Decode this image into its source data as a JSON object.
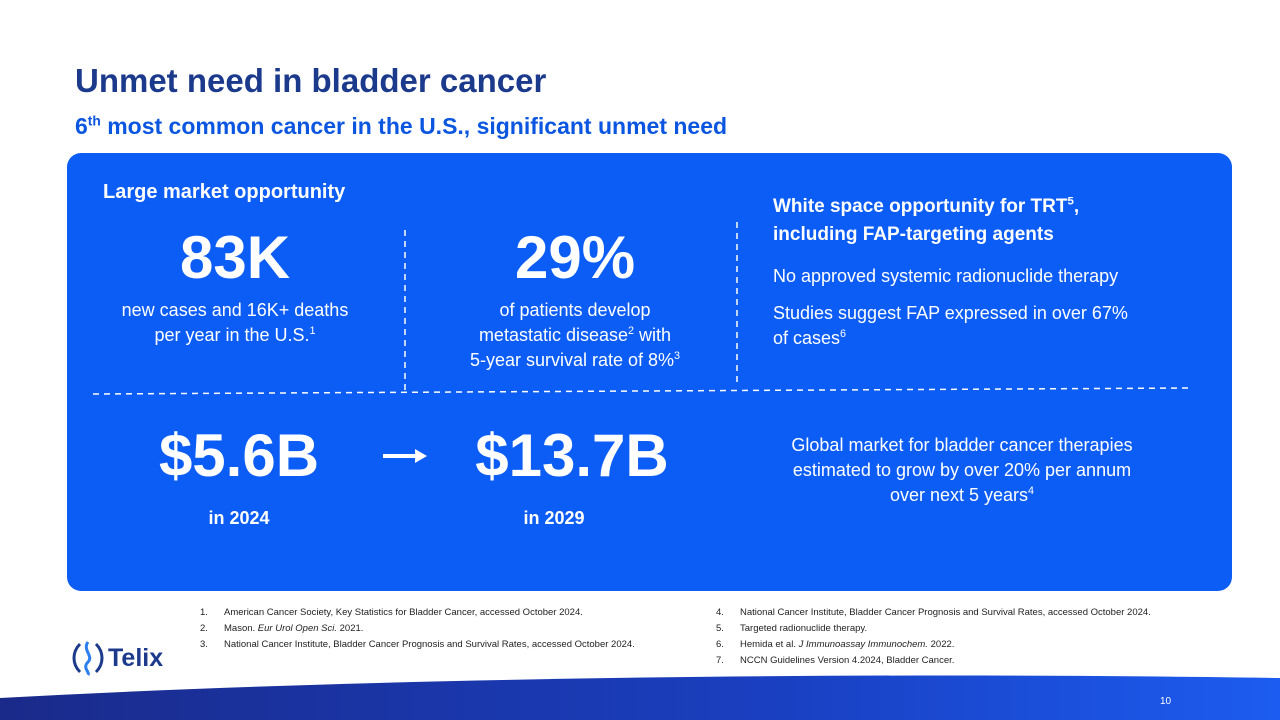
{
  "header": {
    "title": "Unmet need in bladder cancer",
    "subtitle": [
      "6",
      "th",
      "most common cancer in the U.S., significant unmet need"
    ]
  },
  "panel": {
    "market_heading": "Large market opportunity",
    "stat1": {
      "value": "83K",
      "desc": [
        "new cases and 16K+ deaths",
        "per year in the U.S.",
        "1"
      ]
    },
    "stat2": {
      "value": "29%",
      "desc": [
        "of patients develop",
        "metastatic disease",
        "2",
        "with",
        "5-year survival rate of 8%",
        "3"
      ]
    },
    "whitespace": {
      "heading": [
        "White space opportunity for TRT",
        "5",
        ",",
        "including FAP-targeting agents"
      ],
      "point1": "No approved systemic radionuclide therapy",
      "point2": [
        "Studies suggest FAP expressed in over 67%",
        "of cases",
        "6"
      ]
    },
    "growth": {
      "from_value": "$5.6B",
      "from_year": "in 2024",
      "to_value": "$13.7B",
      "to_year": "in 2029",
      "desc": [
        "Global market for bladder cancer therapies",
        "estimated to grow by over 20% per annum",
        "over next 5 years",
        "4"
      ]
    }
  },
  "footnotes": [
    {
      "number": "1.",
      "text": [
        "American Cancer Society, Key Statistics for Bladder Cancer, accessed October 2024."
      ]
    },
    {
      "number": "2.",
      "text": [
        "Mason.",
        "Eur Urol Open Sci.",
        "2021."
      ]
    },
    {
      "number": "3.",
      "text": [
        "National Cancer Institute, Bladder Cancer Prognosis and Survival Rates, accessed October 2024."
      ]
    },
    {
      "number": "4.",
      "text": [
        "National Cancer Institute, Bladder Cancer Prognosis and Survival Rates, accessed October 2024."
      ]
    },
    {
      "number": "5.",
      "text": [
        "Targeted radionuclide therapy."
      ]
    },
    {
      "number": "6.",
      "text": [
        "Hemida et al.",
        "J Immunoassay Immunochem.",
        "2022."
      ]
    },
    {
      "number": "7.",
      "text": [
        "NCCN Guidelines Version 4.2024, Bladder Cancer."
      ]
    }
  ],
  "logo": "Telix",
  "page_number": "10"
}
